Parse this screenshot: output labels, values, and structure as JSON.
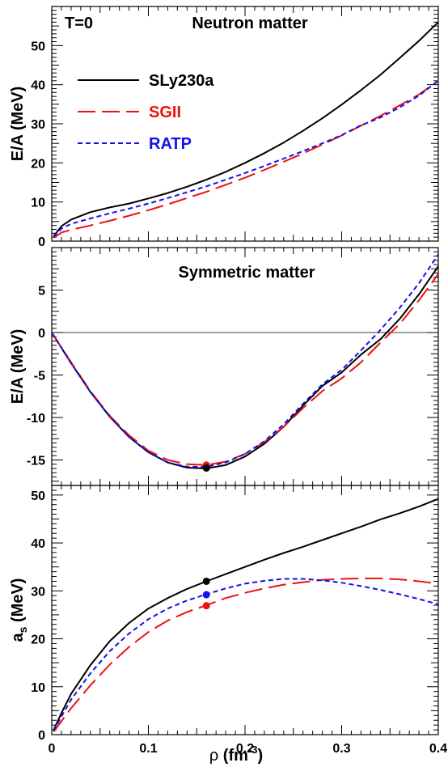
{
  "chart_data": [
    {
      "type": "line",
      "panel": "top",
      "annotations": [
        "T=0",
        "Neutron matter"
      ],
      "ylabel": "E/A (MeV)",
      "xlim": [
        0,
        0.4
      ],
      "ylim": [
        0,
        60
      ],
      "yticks": [
        0,
        10,
        20,
        30,
        40,
        50
      ],
      "legend": "top-left",
      "series": [
        {
          "name": "SLy230a",
          "color": "#000000",
          "dash": "solid",
          "x": [
            0.002,
            0.01,
            0.02,
            0.04,
            0.06,
            0.08,
            0.1,
            0.12,
            0.14,
            0.16,
            0.18,
            0.2,
            0.22,
            0.24,
            0.26,
            0.28,
            0.3,
            0.32,
            0.34,
            0.36,
            0.38,
            0.4
          ],
          "y": [
            1.3,
            3.8,
            5.5,
            7.4,
            8.6,
            9.6,
            10.9,
            12.3,
            13.9,
            15.7,
            17.7,
            20.0,
            22.5,
            25.2,
            28.2,
            31.4,
            34.9,
            38.6,
            42.5,
            46.8,
            51.2,
            56.0
          ]
        },
        {
          "name": "SGII",
          "color": "#ee1111",
          "dash": "long-dash",
          "x": [
            0.002,
            0.01,
            0.02,
            0.04,
            0.06,
            0.08,
            0.1,
            0.12,
            0.14,
            0.16,
            0.18,
            0.2,
            0.22,
            0.24,
            0.26,
            0.28,
            0.3,
            0.32,
            0.34,
            0.36,
            0.38,
            0.4
          ],
          "y": [
            0.8,
            2.2,
            2.9,
            4.0,
            5.2,
            6.5,
            7.9,
            9.4,
            11.0,
            12.6,
            14.4,
            16.2,
            18.2,
            20.3,
            22.4,
            24.7,
            27.0,
            29.5,
            32.0,
            34.7,
            37.5,
            41.0
          ]
        },
        {
          "name": "RATP",
          "color": "#1111ee",
          "dash": "short-dash",
          "x": [
            0.002,
            0.01,
            0.02,
            0.04,
            0.06,
            0.08,
            0.1,
            0.12,
            0.14,
            0.16,
            0.18,
            0.2,
            0.22,
            0.24,
            0.26,
            0.28,
            0.3,
            0.32,
            0.34,
            0.36,
            0.38,
            0.4
          ],
          "y": [
            1.1,
            3.2,
            4.4,
            5.8,
            7.1,
            8.3,
            9.6,
            11.0,
            12.5,
            14.0,
            15.7,
            17.4,
            19.2,
            21.1,
            23.0,
            25.0,
            27.1,
            29.6,
            31.6,
            34.2,
            37.2,
            41.0
          ]
        }
      ]
    },
    {
      "type": "line",
      "panel": "middle",
      "annotations": [
        "Symmetric matter"
      ],
      "ylabel": "E/A (MeV)",
      "xlim": [
        0,
        0.4
      ],
      "ylim": [
        -18,
        10
      ],
      "yticks": [
        -15,
        -10,
        -5,
        0,
        5
      ],
      "zero_line": true,
      "series": [
        {
          "name": "SLy230a",
          "color": "#000000",
          "dash": "solid",
          "x": [
            0.0,
            0.02,
            0.04,
            0.06,
            0.08,
            0.1,
            0.12,
            0.14,
            0.16,
            0.18,
            0.2,
            0.22,
            0.24,
            0.26,
            0.28,
            0.3,
            0.32,
            0.34,
            0.36,
            0.38,
            0.4
          ],
          "y": [
            0.0,
            -3.6,
            -7.0,
            -9.9,
            -12.3,
            -14.1,
            -15.3,
            -15.9,
            -16.0,
            -15.6,
            -14.6,
            -13.1,
            -11.1,
            -8.6,
            -6.3,
            -4.7,
            -2.6,
            -0.8,
            1.6,
            4.5,
            7.8
          ]
        },
        {
          "name": "SGII",
          "color": "#ee1111",
          "dash": "long-dash",
          "x": [
            0.0,
            0.02,
            0.04,
            0.06,
            0.08,
            0.1,
            0.12,
            0.14,
            0.16,
            0.18,
            0.2,
            0.22,
            0.24,
            0.26,
            0.28,
            0.3,
            0.32,
            0.34,
            0.36,
            0.38,
            0.4
          ],
          "y": [
            0.0,
            -3.5,
            -6.9,
            -9.8,
            -12.1,
            -13.9,
            -15.0,
            -15.5,
            -15.6,
            -15.2,
            -14.3,
            -12.9,
            -11.1,
            -8.9,
            -6.9,
            -5.4,
            -3.5,
            -1.2,
            1.0,
            3.8,
            6.9
          ]
        },
        {
          "name": "RATP",
          "color": "#1111ee",
          "dash": "short-dash",
          "x": [
            0.0,
            0.02,
            0.04,
            0.06,
            0.08,
            0.1,
            0.12,
            0.14,
            0.16,
            0.18,
            0.2,
            0.22,
            0.24,
            0.26,
            0.28,
            0.3,
            0.32,
            0.34,
            0.36,
            0.38,
            0.4
          ],
          "y": [
            0.0,
            -3.6,
            -7.0,
            -9.9,
            -12.3,
            -14.1,
            -15.3,
            -15.8,
            -15.8,
            -15.3,
            -14.3,
            -12.8,
            -10.8,
            -8.4,
            -6.1,
            -4.4,
            -2.1,
            0.3,
            2.9,
            5.8,
            9.2
          ]
        }
      ],
      "points": [
        {
          "series": "SGII",
          "x": 0.16,
          "y": -15.6,
          "color": "#ee1111"
        },
        {
          "series": "SLy230a",
          "x": 0.16,
          "y": -15.95,
          "color": "#000000"
        }
      ]
    },
    {
      "type": "line",
      "panel": "bottom",
      "xlabel": "ρ (fm⁻³)",
      "ylabel": "a_s (MeV)",
      "xlim": [
        0,
        0.4
      ],
      "ylim": [
        0,
        52
      ],
      "xticks": [
        0,
        0.1,
        0.2,
        0.3,
        0.4
      ],
      "xtick_labels": [
        "0",
        "0.1",
        "0.2",
        "0.3",
        "0.4"
      ],
      "yticks": [
        0,
        10,
        20,
        30,
        40,
        50
      ],
      "series": [
        {
          "name": "SLy230a",
          "color": "#000000",
          "dash": "solid",
          "x": [
            0.002,
            0.01,
            0.02,
            0.04,
            0.06,
            0.08,
            0.1,
            0.12,
            0.14,
            0.16,
            0.18,
            0.2,
            0.22,
            0.24,
            0.26,
            0.28,
            0.3,
            0.32,
            0.34,
            0.36,
            0.38,
            0.4
          ],
          "y": [
            1.0,
            4.5,
            8.5,
            14.5,
            19.5,
            23.3,
            26.3,
            28.5,
            30.4,
            32.0,
            33.5,
            35.0,
            36.5,
            37.9,
            39.2,
            40.6,
            42.0,
            43.4,
            44.9,
            46.2,
            47.6,
            49.2
          ]
        },
        {
          "name": "SGII",
          "color": "#ee1111",
          "dash": "long-dash",
          "x": [
            0.002,
            0.01,
            0.02,
            0.04,
            0.06,
            0.08,
            0.1,
            0.12,
            0.14,
            0.16,
            0.18,
            0.2,
            0.22,
            0.24,
            0.26,
            0.28,
            0.3,
            0.32,
            0.34,
            0.36,
            0.38,
            0.4
          ],
          "y": [
            0.6,
            2.8,
            5.5,
            10.3,
            14.6,
            18.3,
            21.4,
            23.8,
            25.6,
            27.0,
            28.5,
            29.6,
            30.5,
            31.3,
            31.8,
            32.3,
            32.5,
            32.6,
            32.6,
            32.4,
            32.0,
            31.5
          ]
        },
        {
          "name": "RATP",
          "color": "#1111ee",
          "dash": "short-dash",
          "x": [
            0.002,
            0.01,
            0.02,
            0.04,
            0.06,
            0.08,
            0.1,
            0.12,
            0.14,
            0.16,
            0.18,
            0.2,
            0.22,
            0.24,
            0.26,
            0.28,
            0.3,
            0.32,
            0.34,
            0.36,
            0.38,
            0.4
          ],
          "y": [
            0.8,
            3.8,
            7.3,
            12.8,
            17.4,
            21.1,
            24.1,
            26.3,
            28.0,
            29.3,
            30.5,
            31.5,
            32.1,
            32.5,
            32.5,
            32.2,
            31.7,
            31.0,
            30.2,
            29.3,
            28.3,
            27.2
          ]
        }
      ],
      "points": [
        {
          "series": "SLy230a",
          "x": 0.16,
          "y": 32.0,
          "color": "#000000"
        },
        {
          "series": "RATP",
          "x": 0.16,
          "y": 29.2,
          "color": "#1111ee"
        },
        {
          "series": "SGII",
          "x": 0.16,
          "y": 26.9,
          "color": "#ee1111"
        }
      ]
    }
  ]
}
